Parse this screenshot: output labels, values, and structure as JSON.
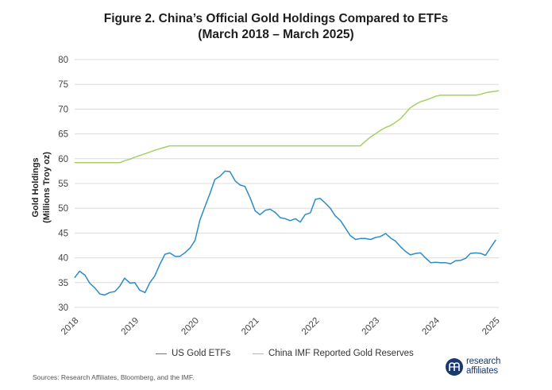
{
  "chart_data": {
    "type": "line",
    "title": "Figure 2. China’s Official Gold Holdings Compared to ETFs",
    "subtitle": "(March 2018 – March 2025)",
    "ylabel": "Gold Holdings",
    "ylabel_units": "(Millions Troy oz)",
    "xlabel": "",
    "ylim": [
      30,
      80
    ],
    "xlim": [
      2018.0,
      2025.05
    ],
    "yticks": [
      "30",
      "35",
      "40",
      "45",
      "50",
      "55",
      "60",
      "65",
      "70",
      "75",
      "80"
    ],
    "xticks": [
      "2018",
      "2019",
      "2020",
      "2021",
      "2022",
      "2023",
      "2024",
      "2025"
    ],
    "grid": true,
    "legend_position": "bottom",
    "series": [
      {
        "name": "US Gold ETFs",
        "color": "#2b8cc4",
        "x": [
          2018.0,
          2018.08,
          2018.17,
          2018.25,
          2018.33,
          2018.42,
          2018.5,
          2018.58,
          2018.67,
          2018.75,
          2018.83,
          2018.92,
          2019.0,
          2019.08,
          2019.17,
          2019.25,
          2019.33,
          2019.42,
          2019.5,
          2019.58,
          2019.67,
          2019.75,
          2019.83,
          2019.92,
          2020.0,
          2020.08,
          2020.17,
          2020.25,
          2020.33,
          2020.42,
          2020.5,
          2020.58,
          2020.67,
          2020.75,
          2020.83,
          2020.92,
          2021.0,
          2021.08,
          2021.17,
          2021.25,
          2021.33,
          2021.42,
          2021.5,
          2021.58,
          2021.67,
          2021.75,
          2021.83,
          2021.92,
          2022.0,
          2022.08,
          2022.17,
          2022.25,
          2022.33,
          2022.42,
          2022.5,
          2022.58,
          2022.67,
          2022.75,
          2022.83,
          2022.92,
          2023.0,
          2023.08,
          2023.17,
          2023.25,
          2023.33,
          2023.42,
          2023.5,
          2023.58,
          2023.67,
          2023.75,
          2023.83,
          2023.92,
          2024.0,
          2024.08,
          2024.17,
          2024.25,
          2024.33,
          2024.42,
          2024.5,
          2024.58,
          2024.67,
          2024.75,
          2024.83,
          2024.92,
          2025.0
        ],
        "values": [
          36.0,
          37.3,
          36.5,
          34.9,
          34.0,
          32.7,
          32.5,
          33.0,
          33.2,
          34.3,
          35.9,
          34.9,
          35.0,
          33.5,
          33.0,
          35.0,
          36.3,
          38.8,
          40.7,
          41.0,
          40.3,
          40.3,
          41.0,
          42.0,
          43.5,
          47.5,
          50.5,
          53.0,
          55.8,
          56.5,
          57.5,
          57.4,
          55.5,
          54.7,
          54.4,
          52.0,
          49.5,
          48.7,
          49.6,
          49.8,
          49.2,
          48.1,
          47.9,
          47.5,
          47.9,
          47.2,
          48.7,
          49.1,
          51.8,
          52.0,
          51.0,
          50.0,
          48.5,
          47.5,
          46.0,
          44.5,
          43.7,
          43.9,
          43.9,
          43.7,
          44.1,
          44.3,
          44.9,
          44.0,
          43.4,
          42.2,
          41.3,
          40.6,
          40.9,
          41.0,
          40.0,
          39.0,
          39.1,
          39.0,
          39.0,
          38.8,
          39.4,
          39.5,
          39.9,
          40.9,
          41.0,
          40.9,
          40.5,
          42.2,
          43.6
        ]
      },
      {
        "name": "China IMF Reported Gold Reserves",
        "color": "#a3d163",
        "x": [
          2018.0,
          2018.5,
          2018.75,
          2018.83,
          2018.92,
          2019.0,
          2019.17,
          2019.33,
          2019.5,
          2019.58,
          2019.75,
          2020.5,
          2021.5,
          2022.5,
          2022.75,
          2022.83,
          2022.92,
          2023.0,
          2023.08,
          2023.17,
          2023.25,
          2023.33,
          2023.42,
          2023.5,
          2023.58,
          2023.67,
          2023.75,
          2023.83,
          2023.92,
          2024.0,
          2024.08,
          2024.25,
          2024.5,
          2024.67,
          2024.75,
          2024.83,
          2024.92,
          2025.0,
          2025.05
        ],
        "values": [
          59.2,
          59.2,
          59.2,
          59.6,
          59.9,
          60.3,
          61.0,
          61.7,
          62.3,
          62.6,
          62.6,
          62.6,
          62.6,
          62.6,
          62.6,
          63.5,
          64.4,
          65.0,
          65.7,
          66.3,
          66.7,
          67.3,
          68.1,
          69.2,
          70.3,
          71.0,
          71.5,
          71.8,
          72.2,
          72.6,
          72.8,
          72.8,
          72.8,
          72.8,
          73.0,
          73.3,
          73.5,
          73.6,
          73.7
        ]
      }
    ]
  },
  "source_note": "Sources: Research Affiliates, Bloomberg, and the IMF.",
  "brand": {
    "line1": "research",
    "line2": "affiliates"
  }
}
